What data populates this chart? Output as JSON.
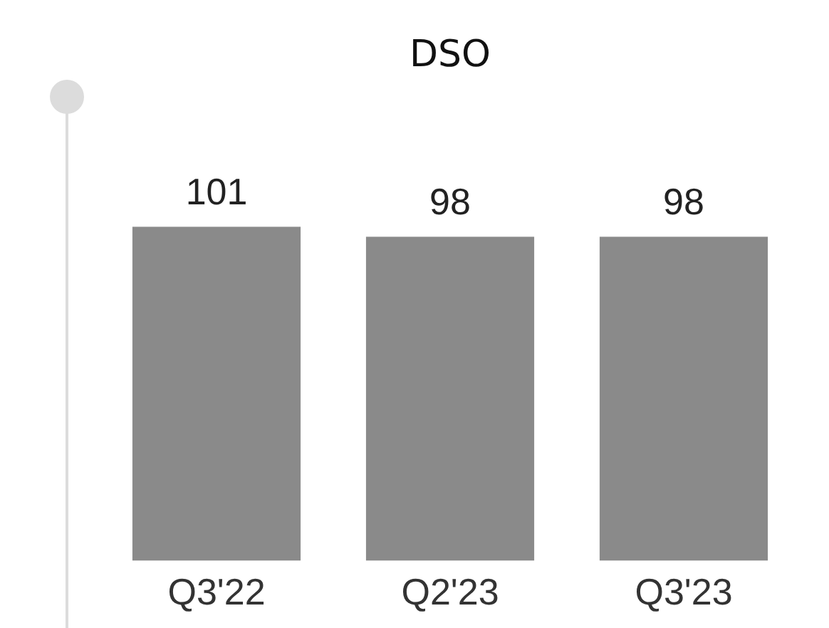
{
  "chart_data": {
    "type": "bar",
    "title": "DSO",
    "categories": [
      "Q3'22",
      "Q2'23",
      "Q3'23"
    ],
    "values": [
      101,
      98,
      98
    ],
    "color": "#8a8a8a",
    "data_labels": true,
    "grid": false,
    "legend": false
  }
}
